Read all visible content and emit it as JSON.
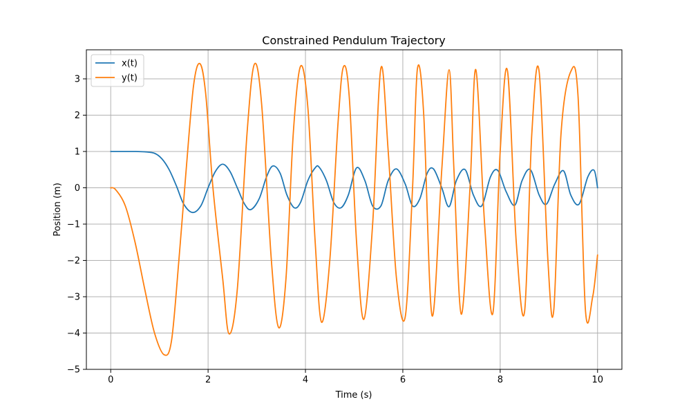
{
  "chart_data": {
    "type": "line",
    "title": "Constrained Pendulum Trajectory",
    "xlabel": "Time (s)",
    "ylabel": "Position (m)",
    "xlim": [
      -0.5,
      10.5
    ],
    "ylim": [
      -5,
      3.8
    ],
    "xticks": [
      0,
      2,
      4,
      6,
      8,
      10
    ],
    "yticks": [
      -5,
      -4,
      -3,
      -2,
      -1,
      0,
      1,
      2,
      3
    ],
    "grid": true,
    "legend_position": "top-left",
    "series": [
      {
        "name": "x(t)",
        "color": "#1f77b4",
        "x": [
          0,
          0.5,
          0.7,
          0.9,
          1.05,
          1.2,
          1.35,
          1.5,
          1.68,
          1.85,
          2.0,
          2.15,
          2.3,
          2.45,
          2.6,
          2.75,
          2.88,
          3.05,
          3.2,
          3.33,
          3.48,
          3.62,
          3.77,
          3.9,
          4.05,
          4.2,
          4.28,
          4.43,
          4.58,
          4.73,
          4.88,
          5.05,
          5.22,
          5.38,
          5.55,
          5.7,
          5.87,
          6.05,
          6.2,
          6.35,
          6.5,
          6.63,
          6.8,
          6.95,
          7.1,
          7.28,
          7.45,
          7.62,
          7.8,
          7.95,
          8.12,
          8.3,
          8.45,
          8.62,
          8.8,
          8.95,
          9.12,
          9.3,
          9.45,
          9.62,
          9.8,
          9.93,
          10.0
        ],
        "y": [
          1.0,
          1.0,
          0.99,
          0.95,
          0.8,
          0.5,
          0.05,
          -0.45,
          -0.68,
          -0.5,
          0.0,
          0.45,
          0.65,
          0.45,
          0.0,
          -0.45,
          -0.6,
          -0.3,
          0.3,
          0.6,
          0.4,
          -0.2,
          -0.55,
          -0.4,
          0.2,
          0.55,
          0.57,
          0.2,
          -0.4,
          -0.55,
          -0.2,
          0.55,
          0.2,
          -0.5,
          -0.5,
          0.2,
          0.52,
          0.1,
          -0.5,
          -0.3,
          0.4,
          0.52,
          0.0,
          -0.52,
          0.2,
          0.5,
          -0.2,
          -0.5,
          0.3,
          0.48,
          -0.1,
          -0.48,
          0.2,
          0.5,
          -0.2,
          -0.45,
          0.1,
          0.47,
          -0.2,
          -0.45,
          0.3,
          0.48,
          0.0
        ]
      },
      {
        "name": "y(t)",
        "color": "#ff7f0e",
        "x": [
          0,
          0.1,
          0.3,
          0.5,
          0.7,
          0.9,
          1.1,
          1.25,
          1.4,
          1.55,
          1.7,
          1.83,
          1.95,
          2.1,
          2.3,
          2.43,
          2.6,
          2.8,
          2.95,
          3.1,
          3.3,
          3.45,
          3.6,
          3.75,
          3.9,
          4.05,
          4.2,
          4.33,
          4.5,
          4.67,
          4.78,
          4.9,
          5.05,
          5.2,
          5.38,
          5.55,
          5.7,
          5.87,
          6.05,
          6.2,
          6.3,
          6.43,
          6.6,
          6.8,
          6.95,
          7.05,
          7.2,
          7.38,
          7.5,
          7.68,
          7.85,
          8.0,
          8.15,
          8.33,
          8.5,
          8.65,
          8.8,
          8.98,
          9.1,
          9.25,
          9.45,
          9.6,
          9.75,
          9.9,
          10.0
        ],
        "y": [
          0,
          -0.05,
          -0.5,
          -1.5,
          -2.8,
          -4.0,
          -4.6,
          -4.2,
          -2.0,
          0.5,
          2.8,
          3.42,
          2.6,
          0.0,
          -2.5,
          -4.02,
          -2.8,
          1.5,
          3.4,
          2.3,
          -2.0,
          -3.85,
          -2.5,
          1.5,
          3.35,
          2.2,
          -1.5,
          -3.7,
          -2.0,
          1.8,
          3.33,
          2.5,
          -1.5,
          -3.62,
          -1.0,
          3.3,
          1.0,
          -2.5,
          -3.55,
          0.0,
          3.28,
          2.0,
          -3.52,
          0.5,
          3.25,
          0.5,
          -3.48,
          0.0,
          3.25,
          -1.0,
          -3.45,
          1.0,
          3.22,
          -1.5,
          -3.42,
          1.5,
          3.2,
          -2.0,
          -3.38,
          1.5,
          3.2,
          2.5,
          -3.35,
          -3.0,
          -1.85
        ]
      }
    ]
  }
}
